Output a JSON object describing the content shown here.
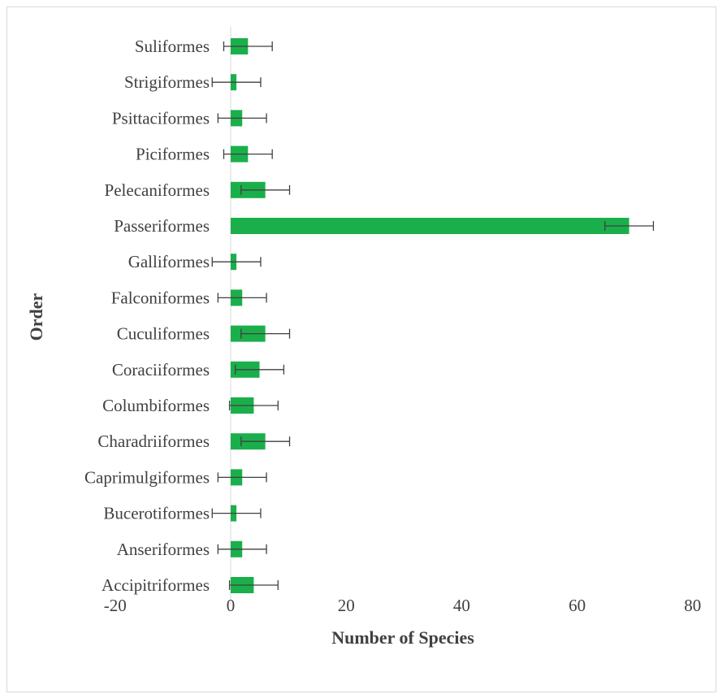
{
  "chart_data": {
    "type": "bar",
    "orientation": "horizontal",
    "xlabel": "Number of Species",
    "ylabel": "Order",
    "xlim": [
      -20,
      80
    ],
    "xticks": [
      -20,
      0,
      20,
      40,
      60,
      80
    ],
    "grid": false,
    "bar_color": "#1aaf4b",
    "error_bar_color": "#404040",
    "categories": [
      "Suliformes",
      "Strigiformes",
      "Psittaciformes",
      "Piciformes",
      "Pelecaniformes",
      "Passeriformes",
      "Galliformes",
      "Falconiformes",
      "Cuculiformes",
      "Coraciiformes",
      "Columbiformes",
      "Charadriiformes",
      "Caprimulgiformes",
      "Bucerotiformes",
      "Anseriformes",
      "Accipitriformes"
    ],
    "values": [
      3,
      1,
      2,
      3,
      6,
      69,
      1,
      2,
      6,
      5,
      4,
      6,
      2,
      1,
      2,
      4
    ],
    "error": [
      4.2,
      4.2,
      4.2,
      4.2,
      4.2,
      4.2,
      4.2,
      4.2,
      4.2,
      4.2,
      4.2,
      4.2,
      4.2,
      4.2,
      4.2,
      4.2
    ]
  }
}
